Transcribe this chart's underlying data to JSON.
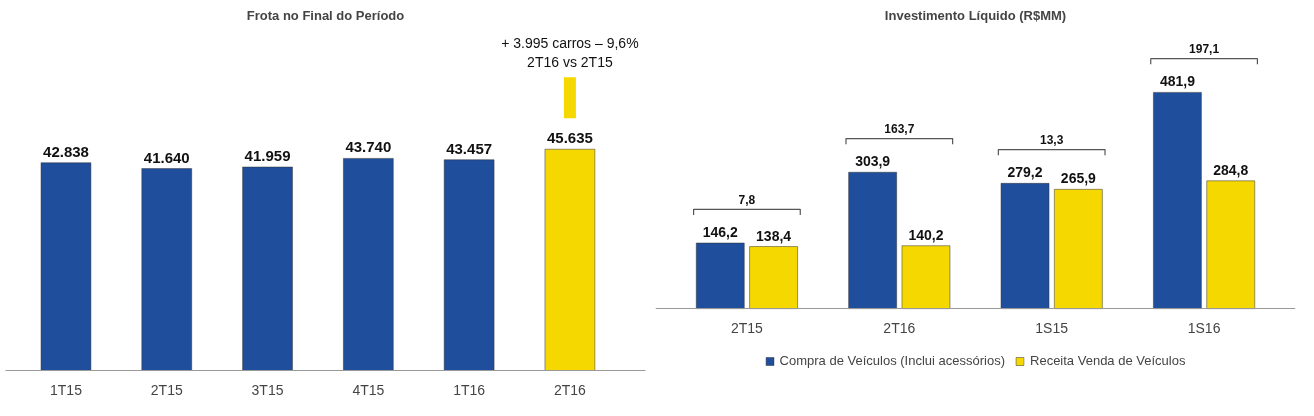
{
  "chart_data": [
    {
      "type": "bar",
      "title": "Frota no Final do Período",
      "categories": [
        "1T15",
        "2T15",
        "3T15",
        "4T15",
        "1T16",
        "2T16"
      ],
      "values": [
        42838,
        41640,
        41959,
        43740,
        43457,
        45635
      ],
      "colors": [
        "#1f4e9c",
        "#1f4e9c",
        "#1f4e9c",
        "#1f4e9c",
        "#1f4e9c",
        "#f5d800"
      ],
      "value_labels": [
        "42.838",
        "41.640",
        "41.959",
        "43.740",
        "43.457",
        "45.635"
      ],
      "annotations": [
        "+ 3.995 carros – 9,6%\n2T16 vs 2T15"
      ],
      "grid": false,
      "legend": false
    },
    {
      "type": "bar",
      "title": "Investimento Líquido (R$MM)",
      "categories": [
        "2T15",
        "2T16",
        "1S15",
        "1S16"
      ],
      "series": [
        {
          "name": "Compra de Veículos (Inclui acessórios)",
          "color": "#1f4e9c",
          "values": [
            146.2,
            303.9,
            279.2,
            481.9
          ],
          "value_labels": [
            "146,2",
            "303,9",
            "279,2",
            "481,9"
          ]
        },
        {
          "name": "Receita Venda de Veículos",
          "color": "#f5d800",
          "values": [
            138.4,
            140.2,
            265.9,
            284.8
          ],
          "value_labels": [
            "138,4",
            "140,2",
            "265,9",
            "284,8"
          ]
        }
      ],
      "annotations": [
        "7,8",
        "163,7",
        "13,3",
        "197,1"
      ],
      "grid": false,
      "legend": "bottom"
    }
  ]
}
